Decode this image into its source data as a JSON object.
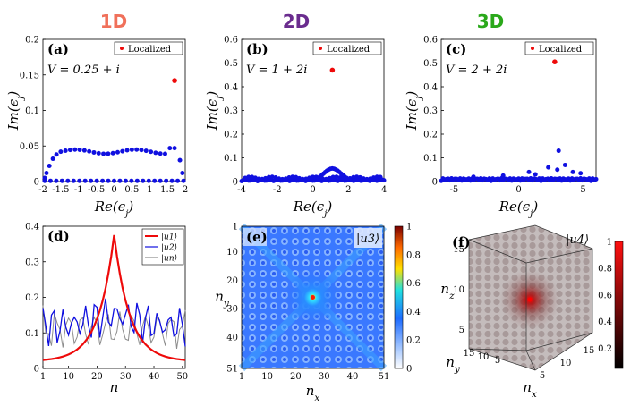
{
  "column_titles": [
    {
      "text": "1D",
      "color": "#f0705a"
    },
    {
      "text": "2D",
      "color": "#6a2c8e"
    },
    {
      "text": "3D",
      "color": "#2aa81a"
    }
  ],
  "colors": {
    "blue": "#1010e0",
    "red": "#ee0a0a",
    "gray": "#8c8c8c"
  },
  "chart_data": [
    {
      "panel": "(a)",
      "type": "scatter",
      "xlabel": "Re(ε_j)",
      "ylabel": "Im(ε_j)",
      "xlim": [
        -2,
        2
      ],
      "ylim": [
        0,
        0.2
      ],
      "xticks": [
        -2,
        -1.5,
        -1,
        -0.5,
        0,
        0.5,
        1,
        1.5,
        2
      ],
      "xticklabels": [
        "-2",
        "-1.5",
        "-1",
        "-0.5",
        "0",
        "0.5",
        "1",
        "1.5",
        "2"
      ],
      "yticks": [
        0,
        0.05,
        0.1,
        0.15,
        0.2
      ],
      "yticklabels": [
        "0",
        "0.05",
        "0.1",
        "0.15",
        "0.2"
      ],
      "annotation": "V = 0.25 + i",
      "legend": {
        "label": "Localized",
        "position": "top-right"
      },
      "localized_point": {
        "x": 1.7,
        "y": 0.142
      },
      "series": {
        "description": "extended states",
        "shape": "plateau"
      }
    },
    {
      "panel": "(b)",
      "type": "scatter",
      "xlabel": "Re(ε_j)",
      "ylabel": "Im(ε_j)",
      "xlim": [
        -4,
        4
      ],
      "ylim": [
        0,
        0.6
      ],
      "xticks": [
        -4,
        -2,
        0,
        2,
        4
      ],
      "xticklabels": [
        "-4",
        "-2",
        "0",
        "2",
        "4"
      ],
      "yticks": [
        0,
        0.1,
        0.2,
        0.3,
        0.4,
        0.5,
        0.6
      ],
      "yticklabels": [
        "0",
        "0.1",
        "0.2",
        "0.3",
        "0.4",
        "0.5",
        "0.6"
      ],
      "annotation": "V = 1 + 2i",
      "legend": {
        "label": "Localized",
        "position": "top-right"
      },
      "localized_point": {
        "x": 1.1,
        "y": 0.47
      },
      "series": {
        "description": "extended states",
        "shape": "bump",
        "peak": {
          "x": 1.1,
          "y": 0.055
        }
      }
    },
    {
      "panel": "(c)",
      "type": "scatter",
      "xlabel": "Re(ε_j)",
      "ylabel": "Im(ε_j)",
      "xlim": [
        -6,
        6
      ],
      "ylim": [
        0,
        0.6
      ],
      "xticks": [
        -5,
        0,
        5
      ],
      "xticklabels": [
        "-5",
        "0",
        "5"
      ],
      "yticks": [
        0,
        0.1,
        0.2,
        0.3,
        0.4,
        0.5,
        0.6
      ],
      "yticklabels": [
        "0",
        "0.1",
        "0.2",
        "0.3",
        "0.4",
        "0.5",
        "0.6"
      ],
      "annotation": "V = 2 + 2i",
      "legend": {
        "label": "Localized",
        "position": "top-right"
      },
      "localized_point": {
        "x": 2.8,
        "y": 0.505
      },
      "series": {
        "description": "extended states",
        "shape": "scattered",
        "max": {
          "x": 3.1,
          "y": 0.13
        }
      }
    },
    {
      "panel": "(d)",
      "type": "line",
      "xlabel": "n",
      "ylabel": "",
      "xlim": [
        1,
        51
      ],
      "ylim": [
        0,
        0.4
      ],
      "xticks": [
        1,
        10,
        20,
        30,
        40,
        50
      ],
      "xticklabels": [
        "1",
        "10",
        "20",
        "30",
        "40",
        "50"
      ],
      "yticks": [
        0,
        0.1,
        0.2,
        0.3,
        0.4
      ],
      "yticklabels": [
        "0",
        "0.1",
        "0.2",
        "0.3",
        "0.4"
      ],
      "legend": {
        "position": "top-right",
        "entries": [
          "|u1⟩",
          "|u2⟩",
          "|un⟩"
        ]
      },
      "series": [
        {
          "name": "|u1⟩",
          "color": "#ee0a0a",
          "shape": "exponential peak",
          "peak": {
            "x": 26,
            "y": 0.375
          }
        },
        {
          "name": "|u2⟩",
          "color": "#1010e0",
          "shape": "oscillating",
          "range": [
            0.05,
            0.21
          ]
        },
        {
          "name": "|un⟩",
          "color": "#8c8c8c",
          "shape": "oscillating",
          "range": [
            0.02,
            0.2
          ]
        }
      ]
    },
    {
      "panel": "(e)",
      "type": "heatmap",
      "xlabel": "n_x",
      "ylabel": "n_y",
      "xticks": [
        1,
        10,
        20,
        30,
        40,
        51
      ],
      "xticklabels": [
        "1",
        "10",
        "20",
        "30",
        "40",
        "51"
      ],
      "yticks": [
        1,
        10,
        20,
        30,
        40,
        51
      ],
      "yticklabels": [
        "1",
        "10",
        "20",
        "30",
        "40",
        "51"
      ],
      "label": "|u3⟩",
      "colorbar": {
        "ticks": [
          0,
          0.2,
          0.4,
          0.6,
          0.8,
          1
        ],
        "ticklabels": [
          "0",
          "0.2",
          "0.4",
          "0.6",
          "0.8",
          "1"
        ]
      },
      "center": {
        "x": 26,
        "y": 26
      }
    },
    {
      "panel": "(f)",
      "type": "heatmap",
      "xlabel": "n_x",
      "ylabel": "n_y",
      "zlabel": "n_z",
      "xticklabels": [
        "5",
        "10",
        "15"
      ],
      "yticklabels": [
        "5",
        "10",
        "15"
      ],
      "zticklabels": [
        "5",
        "10",
        "15"
      ],
      "label": "|u4⟩",
      "colorbar": {
        "ticks": [
          0.2,
          0.4,
          0.6,
          0.8,
          1
        ],
        "ticklabels": [
          "0.2",
          "0.4",
          "0.6",
          "0.8",
          "1"
        ]
      }
    }
  ]
}
